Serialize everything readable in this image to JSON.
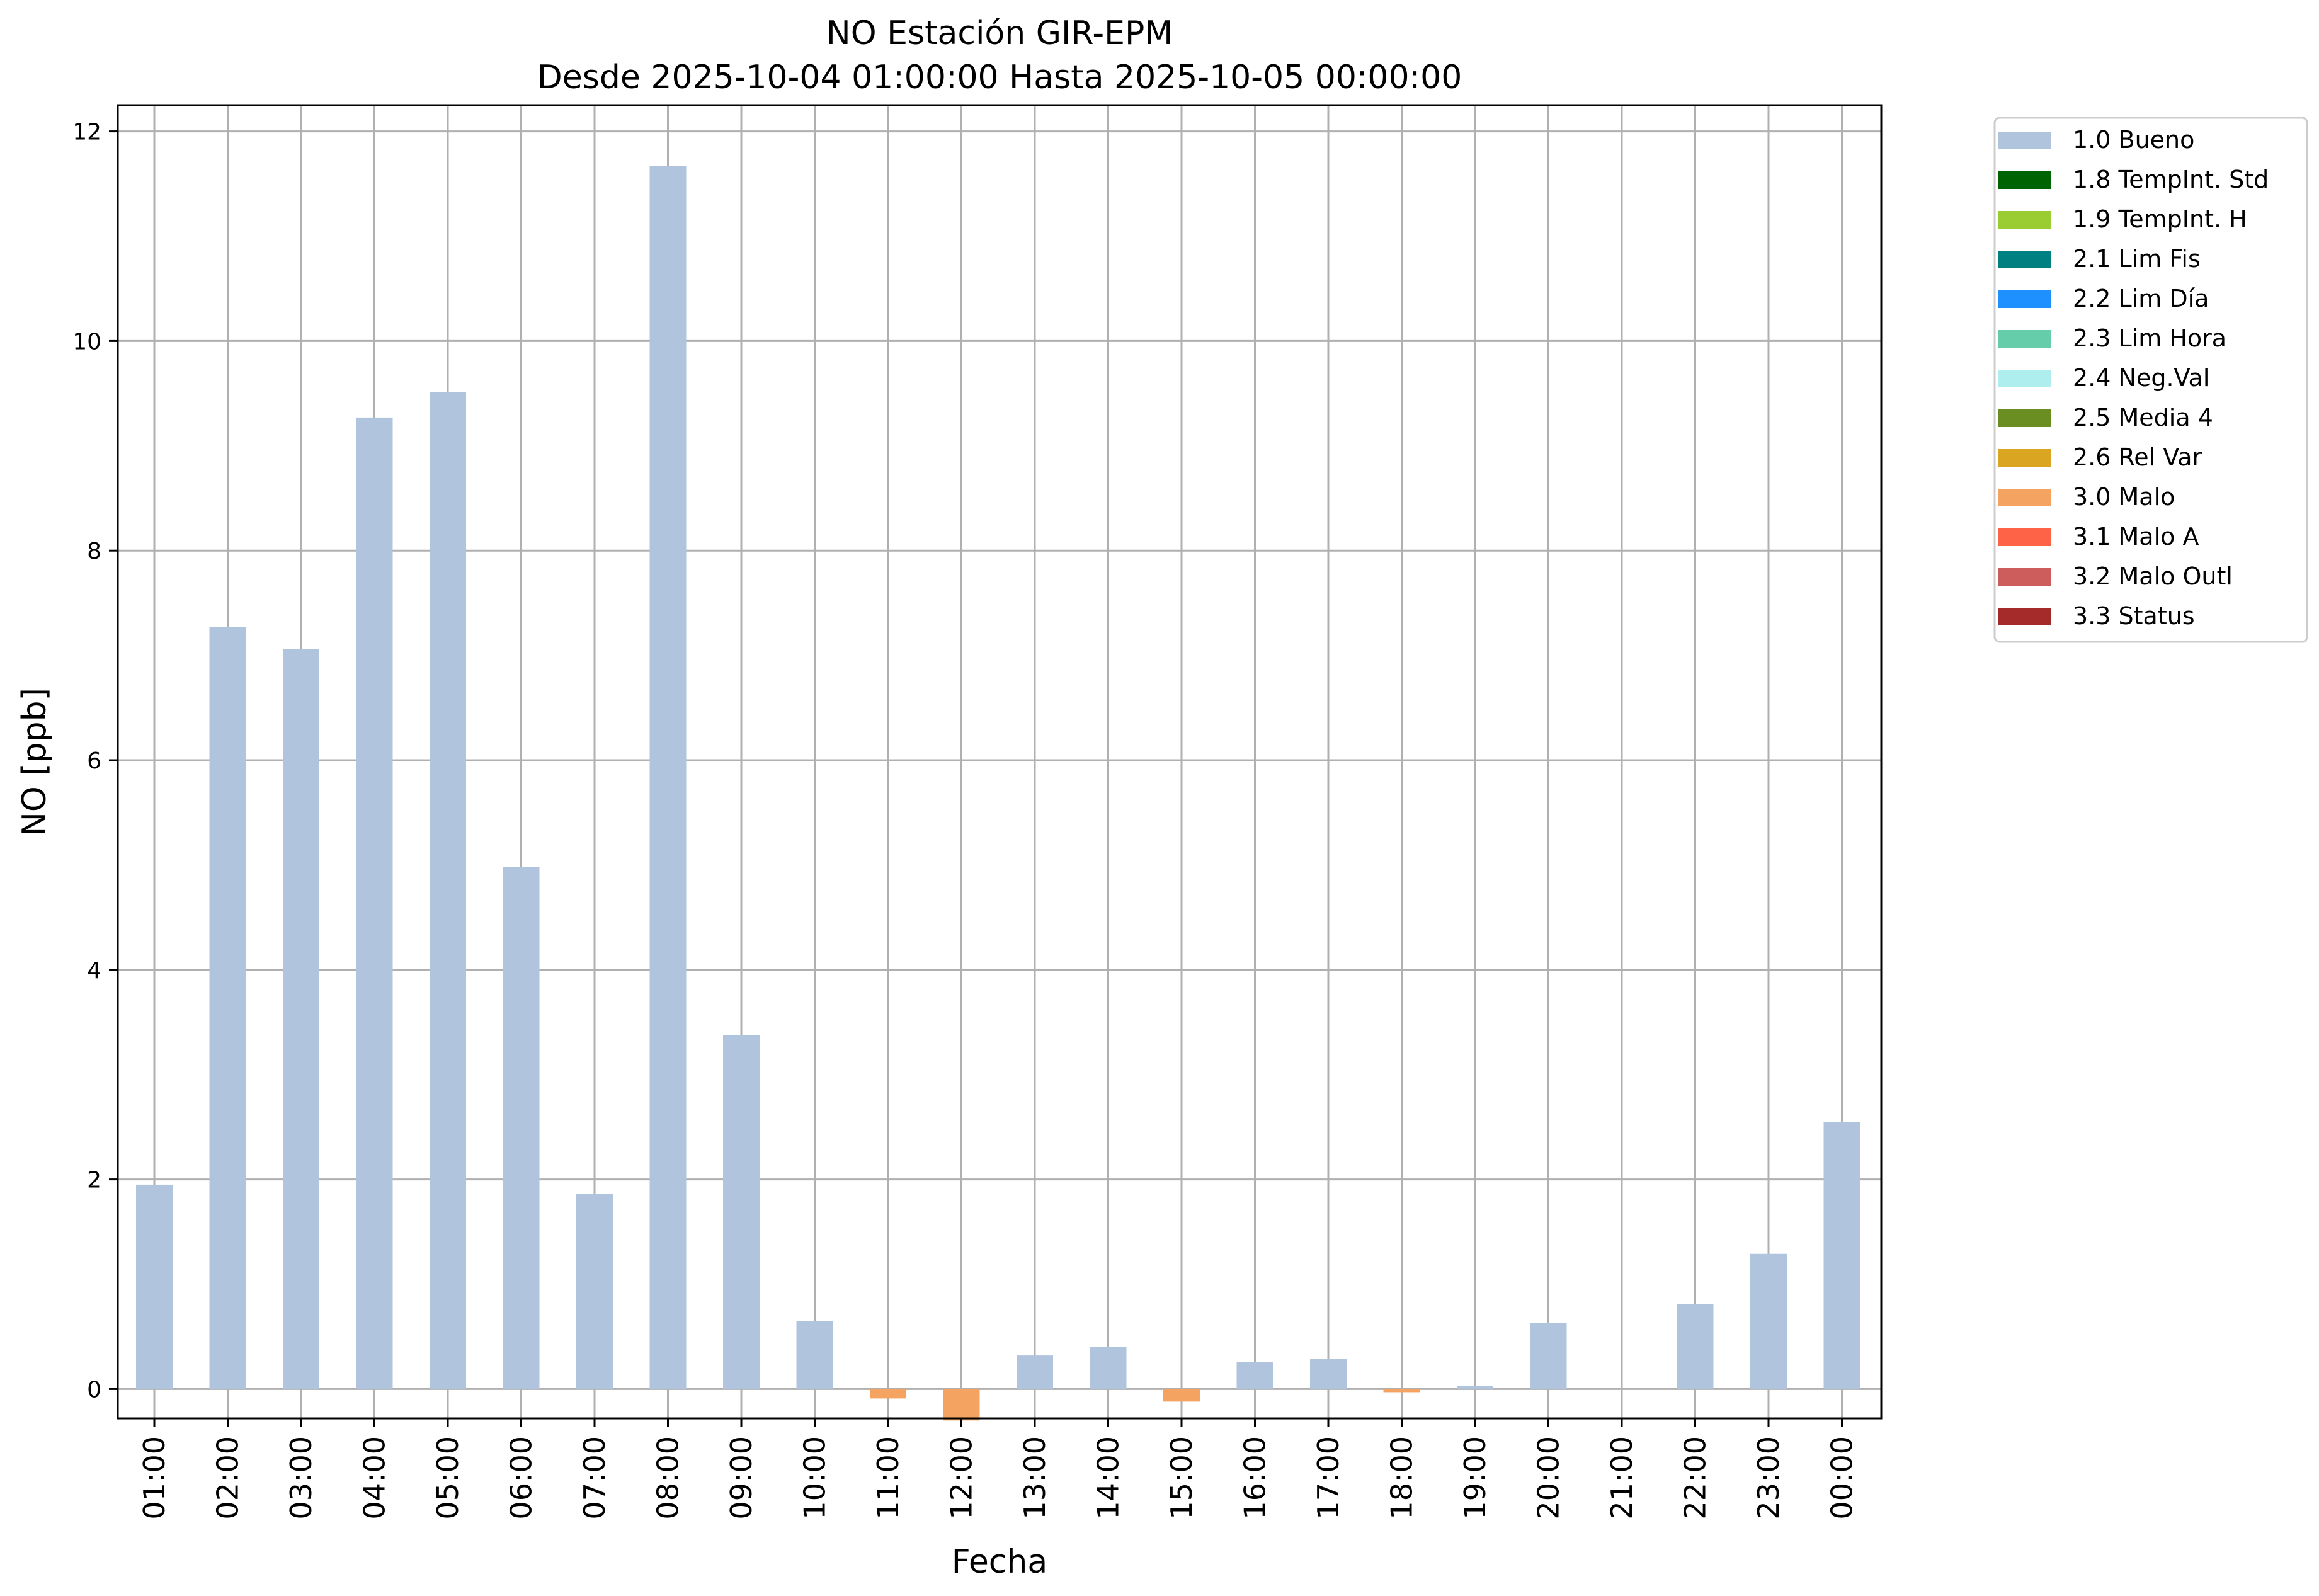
{
  "chart_data": {
    "type": "bar",
    "title": "NO Estación GIR-EPM",
    "subtitle": "Desde 2025-10-04 01:00:00 Hasta 2025-10-05 00:00:00",
    "xlabel": "Fecha",
    "ylabel": "NO [ppb]",
    "ylim": [
      -0.28,
      12.25
    ],
    "yticks": [
      0,
      2,
      4,
      6,
      8,
      10,
      12
    ],
    "grid": true,
    "legend_placement": "outside-top-right",
    "categories": [
      "01:00",
      "02:00",
      "03:00",
      "04:00",
      "05:00",
      "06:00",
      "07:00",
      "08:00",
      "09:00",
      "10:00",
      "11:00",
      "12:00",
      "13:00",
      "14:00",
      "15:00",
      "16:00",
      "17:00",
      "18:00",
      "19:00",
      "20:00",
      "21:00",
      "22:00",
      "23:00",
      "00:00"
    ],
    "values": [
      1.95,
      7.27,
      7.06,
      9.27,
      9.51,
      4.98,
      1.86,
      11.67,
      3.38,
      0.65,
      -0.09,
      -0.3,
      0.32,
      0.4,
      -0.12,
      0.26,
      0.29,
      -0.03,
      0.03,
      0.63,
      0.0,
      0.81,
      1.29,
      2.55
    ],
    "flags": [
      "1.0 Bueno",
      "1.0 Bueno",
      "1.0 Bueno",
      "1.0 Bueno",
      "1.0 Bueno",
      "1.0 Bueno",
      "1.0 Bueno",
      "1.0 Bueno",
      "1.0 Bueno",
      "1.0 Bueno",
      "3.0 Malo",
      "3.0 Malo",
      "1.0 Bueno",
      "1.0 Bueno",
      "3.0 Malo",
      "1.0 Bueno",
      "1.0 Bueno",
      "3.0 Malo",
      "1.0 Bueno",
      "1.0 Bueno",
      "1.0 Bueno",
      "1.0 Bueno",
      "1.0 Bueno",
      "1.0 Bueno"
    ],
    "legend": [
      {
        "label": "1.0 Bueno",
        "color": "#b0c4de"
      },
      {
        "label": "1.8 TempInt. Std",
        "color": "#006400"
      },
      {
        "label": "1.9 TempInt. H",
        "color": "#9acd32"
      },
      {
        "label": "2.1 Lim Fis",
        "color": "#008080"
      },
      {
        "label": "2.2 Lim Día",
        "color": "#1e90ff"
      },
      {
        "label": "2.3 Lim Hora",
        "color": "#66cdaa"
      },
      {
        "label": "2.4 Neg.Val",
        "color": "#afeeee"
      },
      {
        "label": "2.5 Media 4",
        "color": "#6b8e23"
      },
      {
        "label": "2.6 Rel Var",
        "color": "#daa520"
      },
      {
        "label": "3.0 Malo",
        "color": "#f4a460"
      },
      {
        "label": "3.1 Malo A",
        "color": "#ff6347"
      },
      {
        "label": "3.2 Malo Outl",
        "color": "#cd5c5c"
      },
      {
        "label": "3.3 Status",
        "color": "#a52a2a"
      }
    ]
  }
}
